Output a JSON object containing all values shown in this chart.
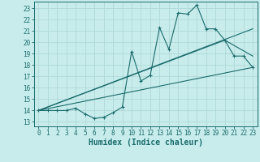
{
  "xlabel": "Humidex (Indice chaleur)",
  "bg_color": "#c8ecec",
  "grid_color": "#b0d8d8",
  "line_color": "#1a6b6b",
  "xlim": [
    -0.5,
    23.5
  ],
  "ylim": [
    12.6,
    23.6
  ],
  "yticks": [
    13,
    14,
    15,
    16,
    17,
    18,
    19,
    20,
    21,
    22,
    23
  ],
  "xticks": [
    0,
    1,
    2,
    3,
    4,
    5,
    6,
    7,
    8,
    9,
    10,
    11,
    12,
    13,
    14,
    15,
    16,
    17,
    18,
    19,
    20,
    21,
    22,
    23
  ],
  "main_x": [
    0,
    1,
    2,
    3,
    4,
    5,
    6,
    7,
    8,
    9,
    10,
    11,
    12,
    13,
    14,
    15,
    16,
    17,
    18,
    19,
    20,
    21,
    22,
    23
  ],
  "main_y": [
    14,
    14,
    14,
    14,
    14.2,
    13.7,
    13.3,
    13.4,
    13.8,
    14.3,
    19.2,
    16.6,
    17.1,
    21.3,
    19.4,
    22.6,
    22.5,
    23.3,
    21.2,
    21.2,
    20.2,
    18.8,
    18.8,
    17.8
  ],
  "trend1_x": [
    0,
    23
  ],
  "trend1_y": [
    14.0,
    21.2
  ],
  "trend2_x": [
    0,
    23
  ],
  "trend2_y": [
    14.0,
    17.8
  ],
  "trend3_x": [
    0,
    20,
    23
  ],
  "trend3_y": [
    14.0,
    20.2,
    18.8
  ],
  "xlabel_fontsize": 7,
  "tick_fontsize": 5.5
}
